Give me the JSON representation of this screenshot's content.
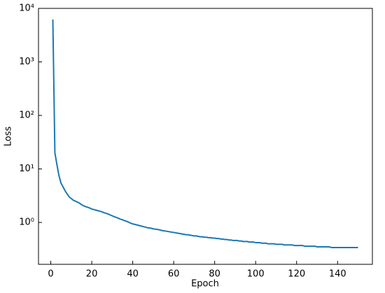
{
  "chart_data": {
    "type": "line",
    "x_label": "Epoch",
    "y_label": "Loss",
    "log_y": true,
    "xlim": [
      -6,
      157
    ],
    "xticks": [
      0,
      20,
      40,
      60,
      80,
      100,
      120,
      140
    ],
    "ylim": [
      0.165,
      10000
    ],
    "yticks": [
      {
        "value": 1,
        "label": "10⁰"
      },
      {
        "value": 10,
        "label": "10¹"
      },
      {
        "value": 100,
        "label": "10²"
      },
      {
        "value": 1000,
        "label": "10³"
      },
      {
        "value": 10000,
        "label": "10⁴"
      }
    ],
    "x": [
      1,
      2,
      3,
      4,
      5,
      6,
      7,
      8,
      9,
      10,
      11,
      12,
      13,
      14,
      15,
      16,
      17,
      18,
      19,
      20,
      21,
      22,
      23,
      24,
      25,
      26,
      27,
      28,
      29,
      30,
      31,
      32,
      33,
      34,
      35,
      36,
      37,
      38,
      39,
      40,
      41,
      42,
      43,
      44,
      45,
      46,
      47,
      48,
      49,
      50,
      51,
      52,
      53,
      54,
      55,
      56,
      57,
      58,
      59,
      60,
      61,
      62,
      63,
      64,
      65,
      66,
      67,
      68,
      69,
      70,
      71,
      72,
      73,
      74,
      75,
      76,
      77,
      78,
      79,
      80,
      81,
      82,
      83,
      84,
      85,
      86,
      87,
      88,
      89,
      90,
      91,
      92,
      93,
      94,
      95,
      96,
      97,
      98,
      99,
      100,
      101,
      102,
      103,
      104,
      105,
      106,
      107,
      108,
      109,
      110,
      111,
      112,
      113,
      114,
      115,
      116,
      117,
      118,
      119,
      120,
      121,
      122,
      123,
      124,
      125,
      126,
      127,
      128,
      129,
      130,
      131,
      132,
      133,
      134,
      135,
      136,
      137,
      138,
      139,
      140,
      141,
      142,
      143,
      144,
      145,
      146,
      147,
      148,
      149,
      150
    ],
    "series": [
      {
        "color": "#1a78b4",
        "values": [
          6200,
          20,
          12,
          7.5,
          5.4,
          4.6,
          3.9,
          3.4,
          3.0,
          2.8,
          2.6,
          2.5,
          2.4,
          2.3,
          2.15,
          2.05,
          1.98,
          1.92,
          1.86,
          1.78,
          1.74,
          1.7,
          1.66,
          1.62,
          1.58,
          1.52,
          1.48,
          1.44,
          1.38,
          1.33,
          1.28,
          1.24,
          1.2,
          1.15,
          1.12,
          1.08,
          1.05,
          1.01,
          0.97,
          0.94,
          0.92,
          0.9,
          0.88,
          0.86,
          0.84,
          0.82,
          0.8,
          0.79,
          0.78,
          0.76,
          0.75,
          0.74,
          0.73,
          0.71,
          0.7,
          0.69,
          0.68,
          0.67,
          0.66,
          0.65,
          0.64,
          0.63,
          0.62,
          0.61,
          0.6,
          0.59,
          0.59,
          0.58,
          0.57,
          0.56,
          0.56,
          0.55,
          0.54,
          0.54,
          0.53,
          0.53,
          0.52,
          0.52,
          0.51,
          0.51,
          0.5,
          0.5,
          0.49,
          0.49,
          0.48,
          0.48,
          0.47,
          0.47,
          0.46,
          0.46,
          0.46,
          0.45,
          0.45,
          0.44,
          0.44,
          0.44,
          0.43,
          0.43,
          0.43,
          0.42,
          0.42,
          0.42,
          0.41,
          0.41,
          0.41,
          0.4,
          0.4,
          0.4,
          0.4,
          0.39,
          0.39,
          0.39,
          0.39,
          0.38,
          0.38,
          0.38,
          0.38,
          0.38,
          0.37,
          0.37,
          0.37,
          0.37,
          0.37,
          0.36,
          0.36,
          0.36,
          0.36,
          0.36,
          0.36,
          0.35,
          0.35,
          0.35,
          0.35,
          0.35,
          0.35,
          0.35,
          0.34,
          0.34,
          0.34,
          0.34,
          0.34,
          0.34,
          0.34,
          0.34,
          0.34,
          0.34,
          0.34,
          0.34,
          0.34,
          0.34
        ]
      }
    ]
  }
}
